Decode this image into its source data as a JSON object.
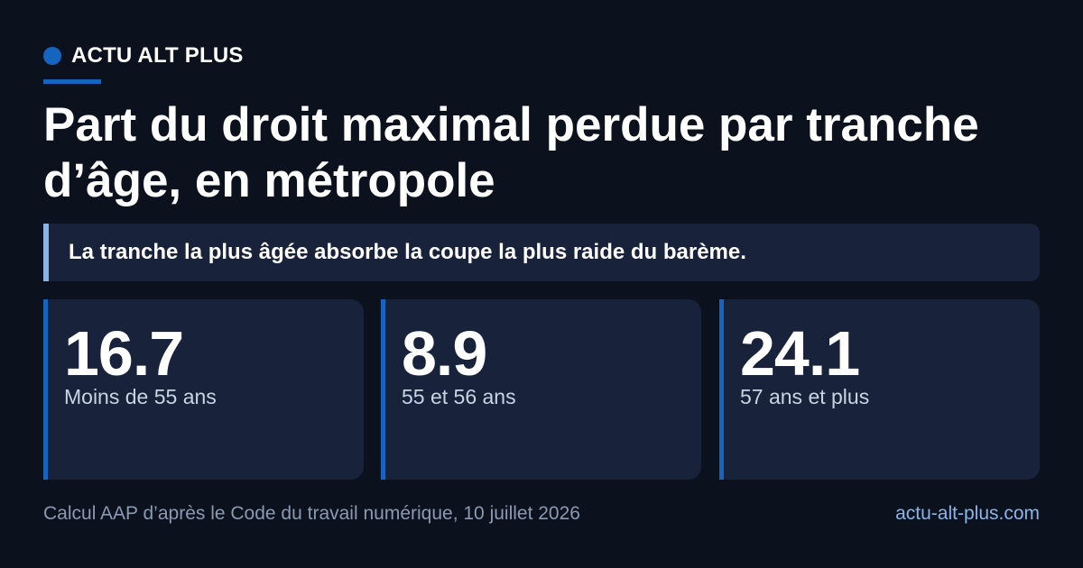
{
  "brand": {
    "name": "ACTU ALT PLUS",
    "accent_color": "#1565c0"
  },
  "headline": {
    "title": "Part du droit maximal perdue par tranche d’âge, en métropole",
    "subtitle": "La tranche la plus âgée absorbe la coupe la plus raide du barème."
  },
  "stats": [
    {
      "value": "16.7",
      "label": "Moins de 55 ans"
    },
    {
      "value": "8.9",
      "label": "55 et 56 ans"
    },
    {
      "value": "24.1",
      "label": "57 ans et plus"
    }
  ],
  "footer": {
    "source": "Calcul AAP d’après le Code du travail numérique, 10 juillet 2026",
    "site": "actu-alt-plus.com"
  },
  "colors": {
    "background": "#0b111d",
    "card": "#18223a",
    "subtitle_bar": "#8ab4e8"
  }
}
